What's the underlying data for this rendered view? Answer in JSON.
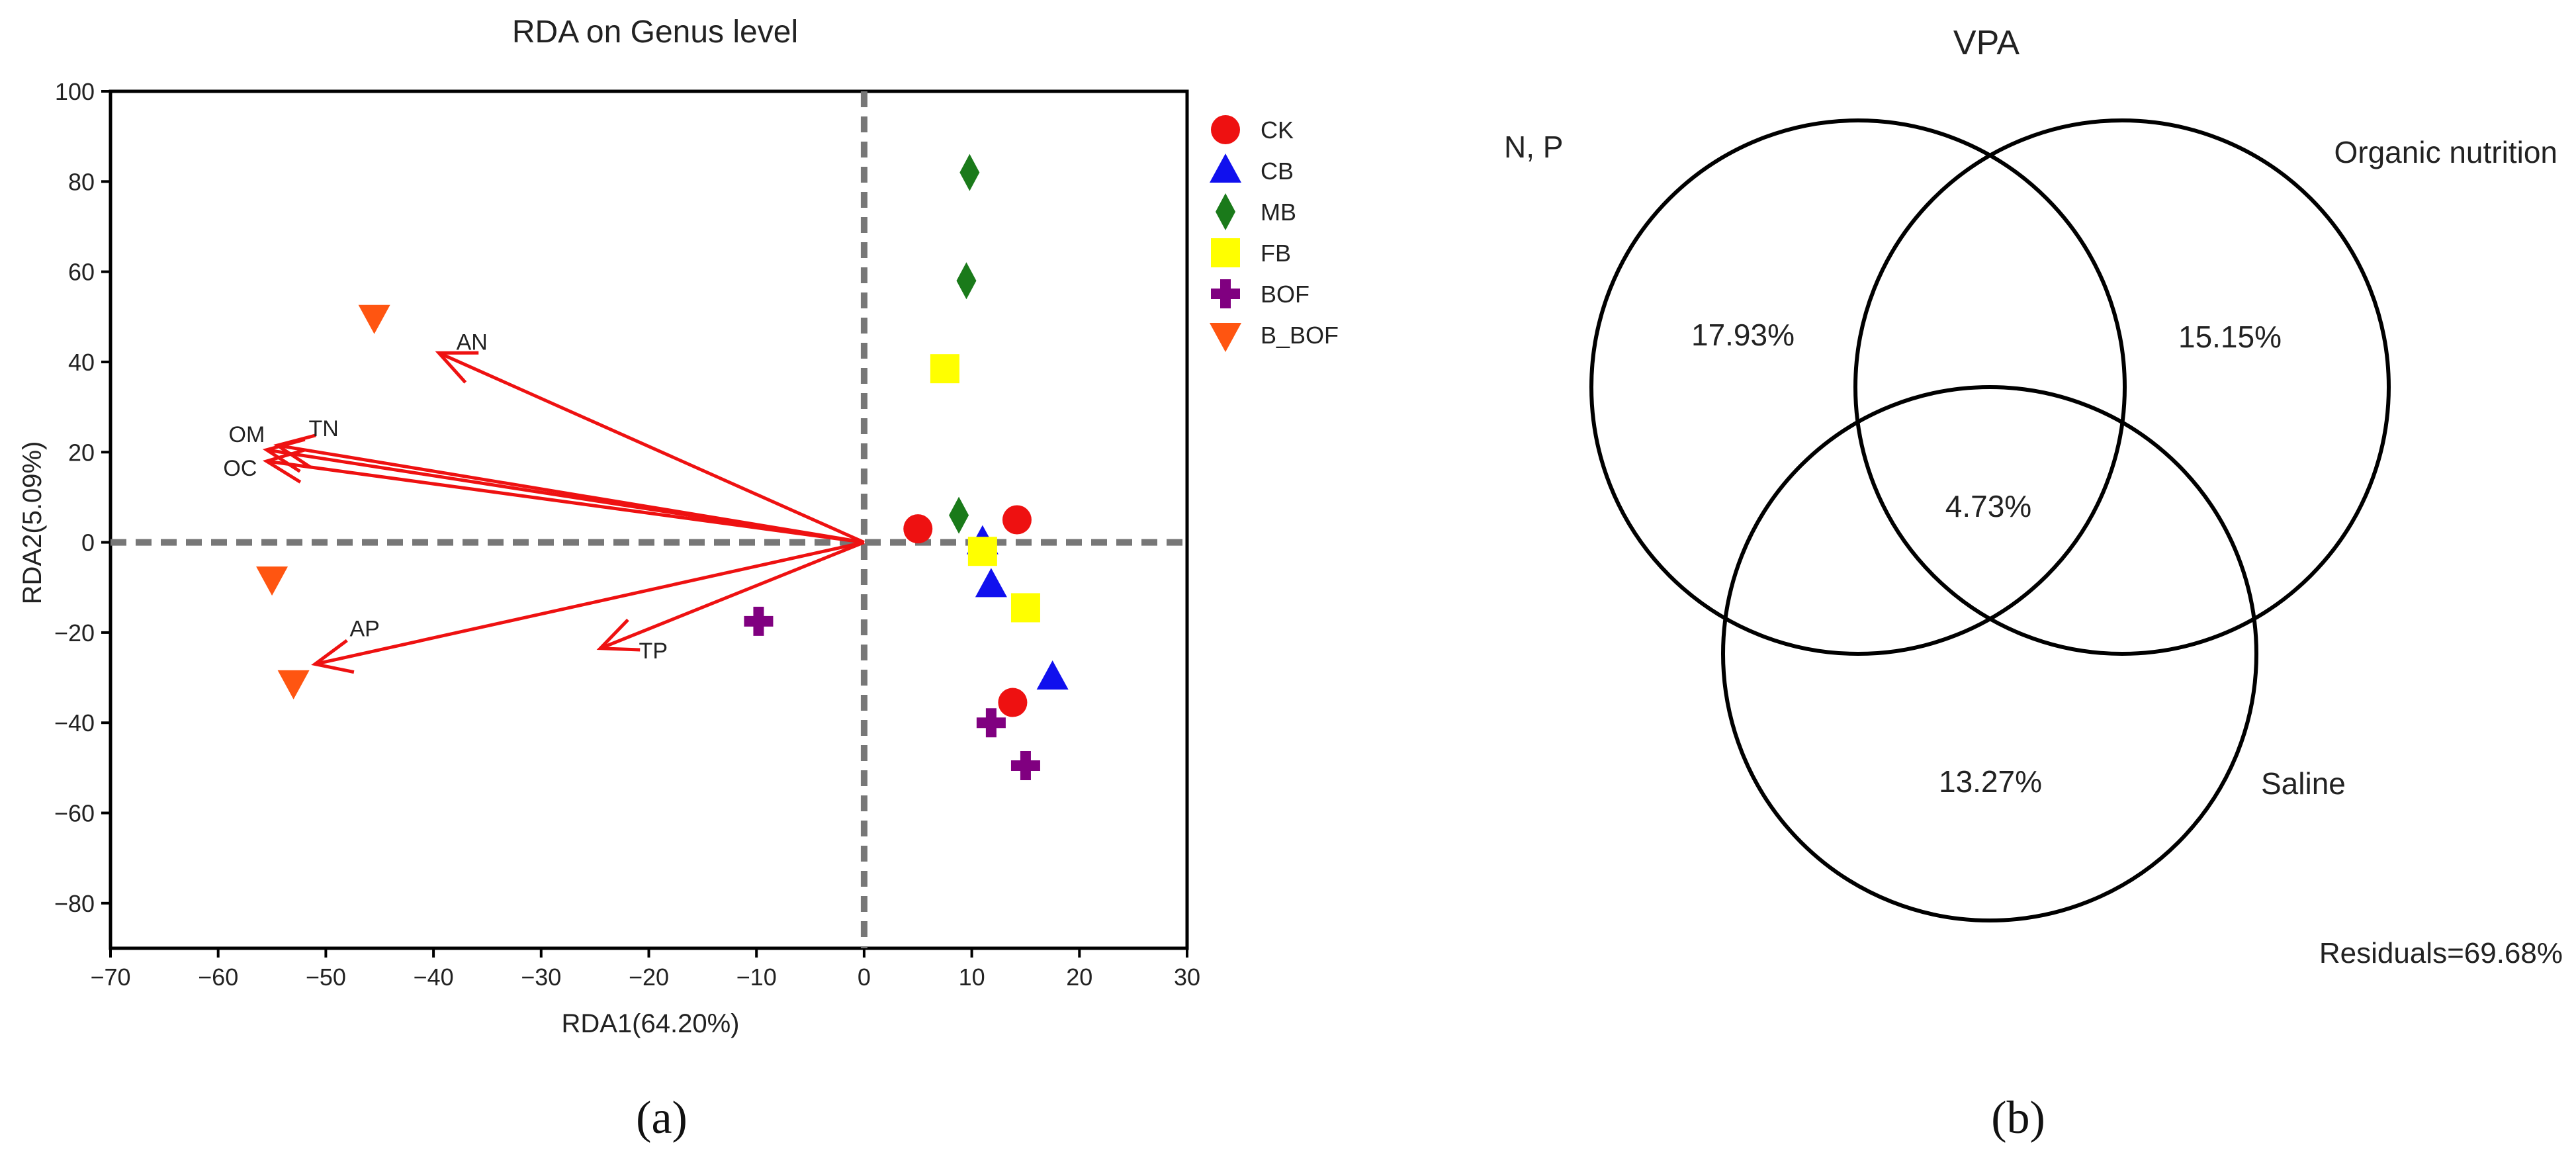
{
  "chart_data": [
    {
      "type": "scatter",
      "title": "RDA on Genus level",
      "xlabel": "RDA1(64.20%)",
      "ylabel": "RDA2(5.09%)",
      "xlim": [
        -70,
        30
      ],
      "ylim": [
        -90,
        100
      ],
      "xticks": [
        -70,
        -60,
        -50,
        -40,
        -30,
        -20,
        -10,
        0,
        10,
        20,
        30
      ],
      "yticks": [
        -80,
        -60,
        -40,
        -20,
        0,
        20,
        40,
        60,
        80,
        100
      ],
      "xtick_labels": [
        "−70",
        "−60",
        "−50",
        "−40",
        "−30",
        "−20",
        "−10",
        "0",
        "10",
        "20",
        "30"
      ],
      "ytick_labels": [
        "−80",
        "−60",
        "−40",
        "−20",
        "0",
        "20",
        "40",
        "60",
        "80",
        "100"
      ],
      "reference_lines": {
        "x": 0,
        "y": 0,
        "style": "dashed"
      },
      "legend_position": "right",
      "series": [
        {
          "name": "CK",
          "marker": "circle",
          "color": "#ee1111",
          "points": [
            [
              5,
              3
            ],
            [
              14.2,
              5
            ],
            [
              13.8,
              -35.5
            ]
          ]
        },
        {
          "name": "CB",
          "marker": "triangle-up",
          "color": "#1010ee",
          "points": [
            [
              11,
              0
            ],
            [
              11.8,
              -9.5
            ],
            [
              17.5,
              -30
            ]
          ]
        },
        {
          "name": "MB",
          "marker": "diamond",
          "color": "#1a7a1a",
          "points": [
            [
              9.8,
              82
            ],
            [
              9.5,
              58
            ],
            [
              8.8,
              6
            ]
          ]
        },
        {
          "name": "FB",
          "marker": "square",
          "color": "#ffff00",
          "points": [
            [
              7.5,
              38.5
            ],
            [
              11,
              -2
            ],
            [
              15,
              -14.5
            ]
          ]
        },
        {
          "name": "BOF",
          "marker": "plus",
          "color": "#800080",
          "points": [
            [
              -9.8,
              -17.5
            ],
            [
              11.8,
              -40
            ],
            [
              15,
              -49.5
            ]
          ]
        },
        {
          "name": "B_BOF",
          "marker": "triangle-down",
          "color": "#ff5511",
          "points": [
            [
              -45.5,
              50
            ],
            [
              -55,
              -8
            ],
            [
              -53,
              -31
            ]
          ]
        }
      ],
      "vectors": [
        {
          "label": "AN",
          "x": -39.5,
          "y": 42
        },
        {
          "label": "OM",
          "x": -55.5,
          "y": 20.5
        },
        {
          "label": "TN",
          "x": -54.5,
          "y": 21.5
        },
        {
          "label": "OC",
          "x": -55.5,
          "y": 18
        },
        {
          "label": "AP",
          "x": -51,
          "y": -27
        },
        {
          "label": "TP",
          "x": -24.5,
          "y": -23.5
        }
      ],
      "vector_color": "#ee1111",
      "panel_label": "(a)"
    },
    {
      "type": "venn",
      "title": "VPA",
      "sets": [
        "N, P",
        "Organic nutrition",
        "Saline"
      ],
      "regions": {
        "N, P only": "17.93%",
        "Organic nutrition only": "15.15%",
        "Saline only": "13.27%",
        "all three": "4.73%"
      },
      "residuals": "Residuals=69.68%",
      "panel_label": "(b)"
    }
  ]
}
